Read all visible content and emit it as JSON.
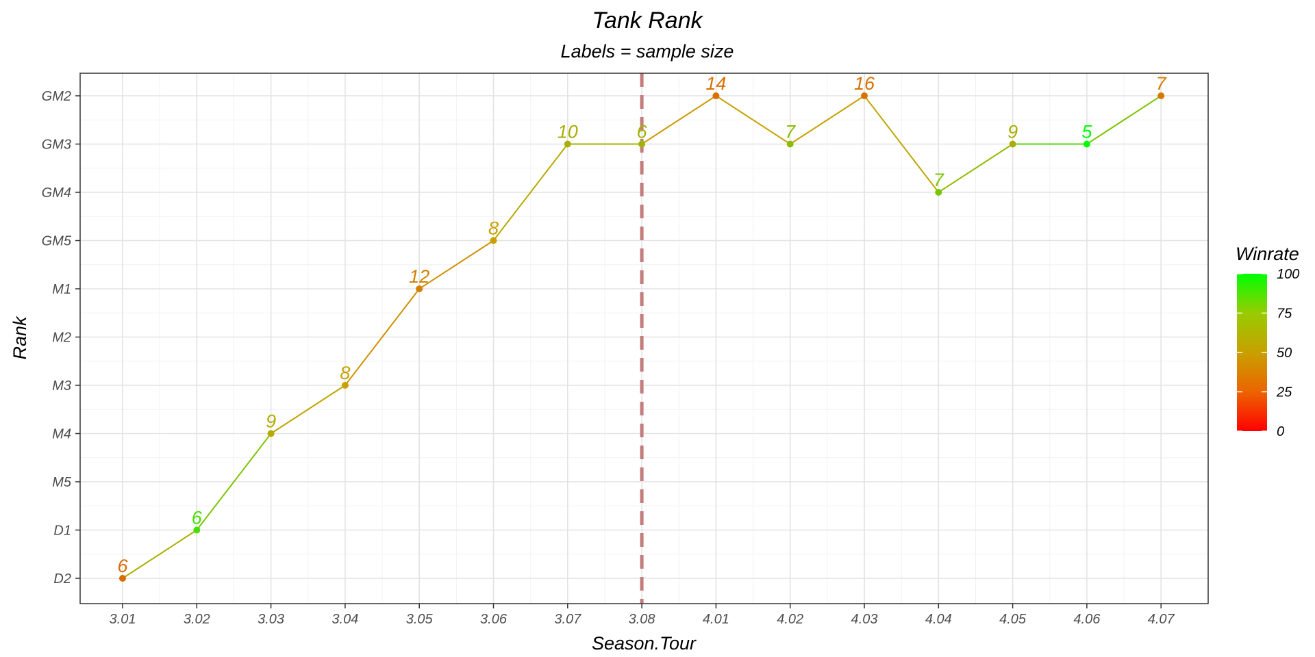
{
  "chart_data": {
    "type": "line",
    "title": "Tank Rank",
    "subtitle": "Labels = sample size",
    "xlabel": "Season.Tour",
    "ylabel": "Rank",
    "categories": [
      "3.01",
      "3.02",
      "3.03",
      "3.04",
      "3.05",
      "3.06",
      "3.07",
      "3.08",
      "4.01",
      "4.02",
      "4.03",
      "4.04",
      "4.05",
      "4.06",
      "4.07"
    ],
    "y_categories": [
      "D2",
      "D1",
      "M5",
      "M4",
      "M3",
      "M2",
      "M1",
      "GM5",
      "GM4",
      "GM3",
      "GM2"
    ],
    "series": [
      {
        "rank": [
          "D2",
          "D1",
          "M4",
          "M3",
          "M1",
          "GM5",
          "GM3",
          "GM3",
          "GM2",
          "GM3",
          "GM2",
          "GM4",
          "GM3",
          "GM3",
          "GM2"
        ],
        "sample_size": [
          6,
          6,
          9,
          8,
          12,
          8,
          10,
          6,
          14,
          7,
          16,
          7,
          9,
          5,
          7
        ],
        "winrate": [
          33,
          83,
          55,
          50,
          40,
          50,
          58,
          60,
          35,
          65,
          35,
          70,
          58,
          100,
          38
        ]
      }
    ],
    "reference_line": {
      "x": "3.08",
      "style": "dashed",
      "color": "#c47c7c"
    },
    "legend": {
      "title": "Winrate",
      "position": "right",
      "ticks": [
        "100",
        "75",
        "50",
        "25",
        "0"
      ],
      "colors": {
        "low": "#ff0000",
        "mid": "#c8a000",
        "high": "#00ff00"
      }
    },
    "grid": true
  }
}
